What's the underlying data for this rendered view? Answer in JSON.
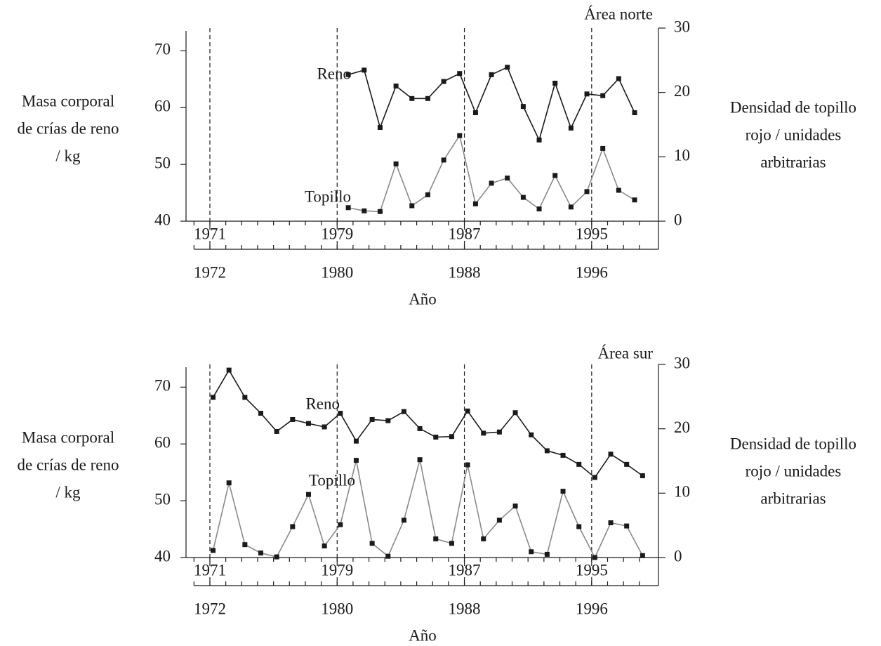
{
  "chart_data": [
    {
      "type": "line",
      "title": "Área norte",
      "xlabel": "Año",
      "ylabel": [
        "Masa corporal",
        "de crías de reno",
        "/ kg"
      ],
      "y2label": [
        "Densidad de topillo",
        "rojo / unidades",
        "arbitrarias"
      ],
      "x": [
        1979.7,
        1980.7,
        1981.7,
        1982.7,
        1983.7,
        1984.7,
        1985.7,
        1986.7,
        1987.7,
        1988.7,
        1989.7,
        1990.7,
        1991.7,
        1992.7,
        1993.7,
        1994.7,
        1995.7,
        1996.7,
        1997.7
      ],
      "series": [
        {
          "name": "Reno",
          "color": "#1a1a1a",
          "values": [
            65.8,
            66.6,
            56.5,
            63.8,
            61.6,
            61.6,
            64.6,
            66.0,
            59.1,
            65.8,
            67.1,
            60.2,
            54.3,
            64.3,
            56.4,
            62.4,
            62.1,
            65.1,
            59.1
          ]
        },
        {
          "name": "Topillo",
          "color": "#8a8a8a",
          "axis": "y2",
          "values": [
            2.1,
            1.6,
            1.5,
            8.9,
            2.4,
            4.1,
            9.5,
            13.3,
            2.7,
            5.9,
            6.7,
            3.7,
            1.9,
            7.1,
            2.2,
            4.6,
            11.3,
            4.8,
            3.3
          ]
        }
      ],
      "xlim": [
        1969.5,
        1999.2
      ],
      "xticks": [
        1971,
        1979,
        1987,
        1995
      ],
      "x2lim": [
        1970.5,
        2000.2
      ],
      "x2ticks": [
        1972,
        1980,
        1988,
        1996
      ],
      "xminorticks": [
        1970,
        1971,
        1972,
        1973,
        1974,
        1975,
        1976,
        1977,
        1978,
        1979,
        1980,
        1981,
        1982,
        1983,
        1984,
        1985,
        1986,
        1987,
        1988,
        1989,
        1990,
        1991,
        1992,
        1993,
        1994,
        1995,
        1996,
        1997,
        1998
      ],
      "ylim": [
        40,
        74
      ],
      "yticks": [
        40,
        50,
        60,
        70
      ],
      "y2lim": [
        0,
        30
      ],
      "y2ticks": [
        0,
        10,
        20,
        30
      ],
      "vlines": true
    },
    {
      "type": "line",
      "title": "Área sur",
      "xlabel": "Año",
      "ylabel": [
        "Masa corporal",
        "de crías de reno",
        "/ kg"
      ],
      "y2label": [
        "Densidad de topillo",
        "rojo / unidades",
        "arbitrarias"
      ],
      "x": [
        1971.2,
        1972.2,
        1973.2,
        1974.2,
        1975.2,
        1976.2,
        1977.2,
        1978.2,
        1979.2,
        1980.2,
        1981.2,
        1982.2,
        1983.2,
        1984.2,
        1985.2,
        1986.2,
        1987.2,
        1988.2,
        1989.2,
        1990.2,
        1991.2,
        1992.2,
        1993.2,
        1994.2,
        1995.2,
        1996.2,
        1997.2,
        1998.2
      ],
      "series": [
        {
          "name": "Reno",
          "color": "#1a1a1a",
          "values": [
            68.2,
            73.0,
            68.2,
            65.4,
            62.2,
            64.3,
            63.6,
            63.0,
            65.4,
            60.5,
            64.3,
            64.1,
            65.7,
            62.7,
            61.2,
            61.3,
            65.8,
            61.9,
            62.1,
            65.5,
            61.6,
            58.8,
            58.0,
            56.4,
            54.1,
            58.2,
            56.4,
            54.4
          ]
        },
        {
          "name": "Topillo",
          "color": "#8a8a8a",
          "axis": "y2",
          "values": [
            1.1,
            11.6,
            2.0,
            0.7,
            0.1,
            4.8,
            9.8,
            1.8,
            5.1,
            15.1,
            2.2,
            0.2,
            5.8,
            15.2,
            2.9,
            2.2,
            14.4,
            2.9,
            5.8,
            8.0,
            0.9,
            0.5,
            10.3,
            4.8,
            0.0,
            5.4,
            4.9,
            0.3
          ]
        }
      ],
      "xlim": [
        1969.5,
        1999.2
      ],
      "xticks": [
        1971,
        1979,
        1987,
        1995
      ],
      "x2lim": [
        1970.5,
        2000.2
      ],
      "x2ticks": [
        1972,
        1980,
        1988,
        1996
      ],
      "xminorticks": [
        1970,
        1971,
        1972,
        1973,
        1974,
        1975,
        1976,
        1977,
        1978,
        1979,
        1980,
        1981,
        1982,
        1983,
        1984,
        1985,
        1986,
        1987,
        1988,
        1989,
        1990,
        1991,
        1992,
        1993,
        1994,
        1995,
        1996,
        1997,
        1998
      ],
      "ylim": [
        40,
        74
      ],
      "yticks": [
        40,
        50,
        60,
        70
      ],
      "y2lim": [
        0,
        30
      ],
      "y2ticks": [
        0,
        10,
        20,
        30
      ],
      "vlines": true
    }
  ]
}
